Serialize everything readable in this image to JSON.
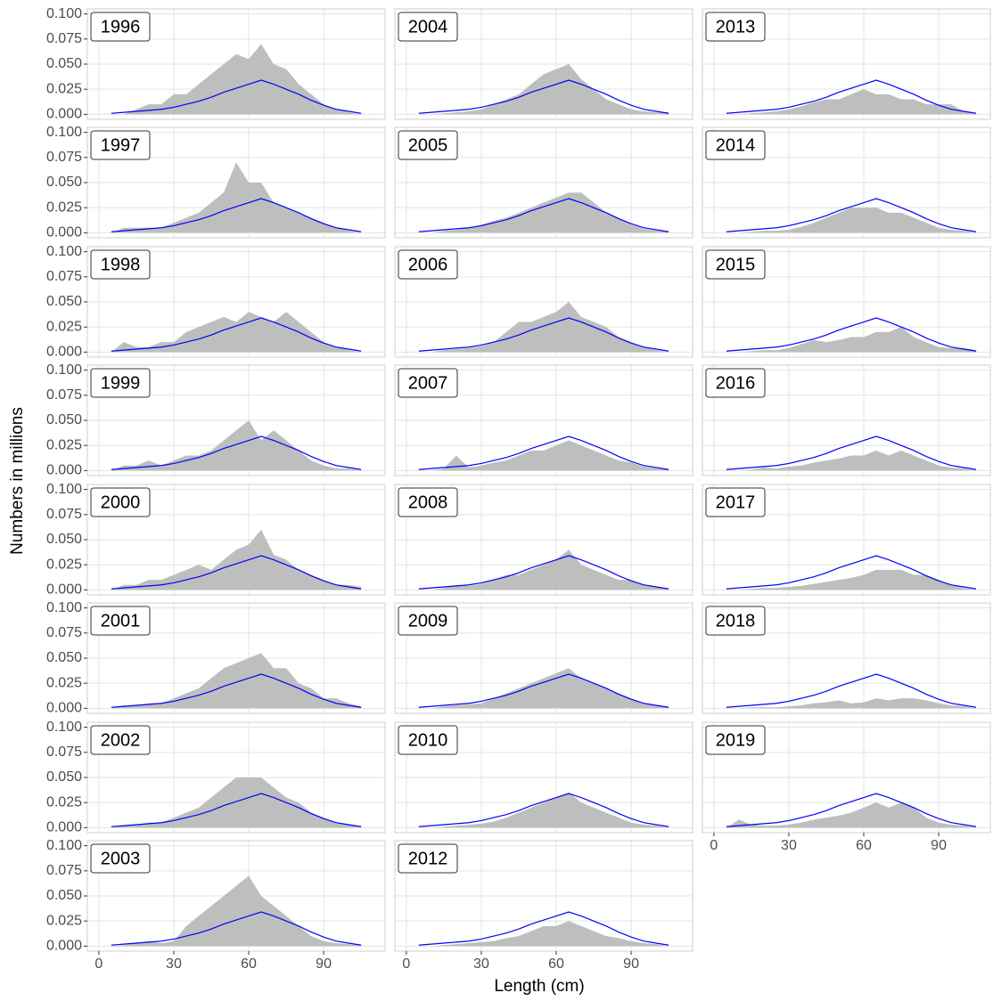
{
  "chart_data": {
    "type": "area-facets",
    "x_label": "Length (cm)",
    "y_label": "Numbers in millions",
    "x": [
      5,
      10,
      15,
      20,
      25,
      30,
      35,
      40,
      45,
      50,
      55,
      60,
      65,
      70,
      75,
      80,
      85,
      90,
      95,
      100,
      105
    ],
    "xlim": [
      -4.6,
      114.6
    ],
    "xticks": [
      0,
      30,
      60,
      90
    ],
    "ylim": [
      -0.005,
      0.105
    ],
    "yticks": [
      {
        "value": 0,
        "label": "0.000"
      },
      0.025,
      {
        "value": 0.05,
        "label": "0.050"
      },
      0.075,
      {
        "value": 0.1,
        "label": "0.100"
      }
    ],
    "grid": true,
    "area_color": "#bebebe",
    "line": {
      "color": "#0000ff",
      "values": [
        0.001,
        0.002,
        0.003,
        0.004,
        0.005,
        0.007,
        0.01,
        0.013,
        0.017,
        0.022,
        0.026,
        0.03,
        0.034,
        0.03,
        0.025,
        0.02,
        0.014,
        0.009,
        0.005,
        0.003,
        0.001
      ]
    },
    "panels": [
      {
        "title": "1996",
        "values": [
          0,
          0,
          0.005,
          0.01,
          0.01,
          0.02,
          0.02,
          0.03,
          0.04,
          0.05,
          0.06,
          0.055,
          0.07,
          0.05,
          0.045,
          0.03,
          0.02,
          0.01,
          0.005,
          0.002,
          0
        ]
      },
      {
        "title": "1997",
        "values": [
          0,
          0.005,
          0.005,
          0.005,
          0.005,
          0.01,
          0.015,
          0.02,
          0.03,
          0.04,
          0.07,
          0.05,
          0.05,
          0.03,
          0.025,
          0.02,
          0.015,
          0.01,
          0.005,
          0.002,
          0
        ]
      },
      {
        "title": "1998",
        "values": [
          0,
          0.01,
          0.005,
          0.005,
          0.01,
          0.01,
          0.02,
          0.025,
          0.03,
          0.035,
          0.03,
          0.04,
          0.035,
          0.03,
          0.04,
          0.03,
          0.02,
          0.01,
          0.005,
          0.002,
          0
        ]
      },
      {
        "title": "1999",
        "values": [
          0,
          0.005,
          0.005,
          0.01,
          0.005,
          0.01,
          0.015,
          0.015,
          0.02,
          0.03,
          0.04,
          0.05,
          0.03,
          0.04,
          0.03,
          0.02,
          0.01,
          0.005,
          0.002,
          0.002,
          0
        ]
      },
      {
        "title": "2000",
        "values": [
          0,
          0.005,
          0.005,
          0.01,
          0.01,
          0.015,
          0.02,
          0.025,
          0.02,
          0.03,
          0.04,
          0.045,
          0.06,
          0.035,
          0.03,
          0.02,
          0.015,
          0.01,
          0.005,
          0.005,
          0.003
        ]
      },
      {
        "title": "2001",
        "values": [
          0,
          0.003,
          0.003,
          0.005,
          0.005,
          0.01,
          0.015,
          0.02,
          0.03,
          0.04,
          0.045,
          0.05,
          0.055,
          0.04,
          0.04,
          0.025,
          0.02,
          0.01,
          0.01,
          0.005,
          0.002
        ]
      },
      {
        "title": "2002",
        "values": [
          0,
          0.002,
          0.003,
          0.005,
          0.005,
          0.01,
          0.015,
          0.02,
          0.03,
          0.04,
          0.05,
          0.05,
          0.05,
          0.04,
          0.03,
          0.025,
          0.015,
          0.01,
          0.005,
          0.003,
          0.001
        ]
      },
      {
        "title": "2003",
        "values": [
          0,
          0.001,
          0.003,
          0.005,
          0.003,
          0.005,
          0.02,
          0.03,
          0.04,
          0.05,
          0.06,
          0.07,
          0.05,
          0.04,
          0.03,
          0.02,
          0.01,
          0.005,
          0.003,
          0.002,
          0.001
        ]
      },
      {
        "title": "2004",
        "values": [
          0,
          0,
          0.001,
          0.002,
          0.003,
          0.005,
          0.01,
          0.015,
          0.02,
          0.03,
          0.04,
          0.045,
          0.05,
          0.035,
          0.025,
          0.015,
          0.01,
          0.005,
          0.003,
          0.002,
          0.002
        ]
      },
      {
        "title": "2005",
        "values": [
          0,
          0,
          0.002,
          0.003,
          0.005,
          0.008,
          0.012,
          0.015,
          0.02,
          0.025,
          0.03,
          0.035,
          0.04,
          0.04,
          0.03,
          0.02,
          0.015,
          0.008,
          0.004,
          0.002,
          0.001
        ]
      },
      {
        "title": "2006",
        "values": [
          0,
          0,
          0.002,
          0.003,
          0.004,
          0.006,
          0.01,
          0.02,
          0.03,
          0.03,
          0.035,
          0.04,
          0.05,
          0.035,
          0.03,
          0.025,
          0.015,
          0.01,
          0.005,
          0.002,
          0
        ]
      },
      {
        "title": "2007",
        "values": [
          0,
          0,
          0.002,
          0.015,
          0.003,
          0.005,
          0.008,
          0.01,
          0.015,
          0.02,
          0.02,
          0.025,
          0.03,
          0.025,
          0.02,
          0.015,
          0.01,
          0.008,
          0.004,
          0.002,
          0.001
        ]
      },
      {
        "title": "2008",
        "values": [
          0,
          0,
          0.002,
          0.005,
          0.004,
          0.006,
          0.01,
          0.015,
          0.015,
          0.02,
          0.025,
          0.03,
          0.04,
          0.025,
          0.02,
          0.015,
          0.01,
          0.01,
          0.005,
          0.003,
          0.001
        ]
      },
      {
        "title": "2009",
        "values": [
          0,
          0,
          0.002,
          0.003,
          0.004,
          0.005,
          0.01,
          0.015,
          0.02,
          0.025,
          0.03,
          0.035,
          0.04,
          0.03,
          0.025,
          0.02,
          0.015,
          0.01,
          0.005,
          0.003,
          0.001
        ]
      },
      {
        "title": "2010",
        "values": [
          0,
          0,
          0.001,
          0.002,
          0.003,
          0.004,
          0.006,
          0.01,
          0.015,
          0.02,
          0.025,
          0.03,
          0.035,
          0.025,
          0.02,
          0.015,
          0.01,
          0.005,
          0.003,
          0.002,
          0
        ]
      },
      {
        "title": "2012",
        "values": [
          0,
          0,
          0.001,
          0.002,
          0.003,
          0.004,
          0.005,
          0.008,
          0.01,
          0.015,
          0.02,
          0.02,
          0.025,
          0.02,
          0.015,
          0.01,
          0.008,
          0.005,
          0.003,
          0.002,
          0
        ]
      },
      {
        "title": "2013",
        "values": [
          0,
          0,
          0.001,
          0.002,
          0.003,
          0.005,
          0.008,
          0.012,
          0.015,
          0.015,
          0.02,
          0.025,
          0.02,
          0.02,
          0.015,
          0.015,
          0.01,
          0.01,
          0.01,
          0.003,
          0
        ]
      },
      {
        "title": "2014",
        "values": [
          0,
          0,
          0.001,
          0.002,
          0.002,
          0.003,
          0.006,
          0.01,
          0.015,
          0.02,
          0.025,
          0.025,
          0.025,
          0.02,
          0.02,
          0.015,
          0.01,
          0.005,
          0.003,
          0.002,
          0
        ]
      },
      {
        "title": "2015",
        "values": [
          0,
          0,
          0.001,
          0.002,
          0.002,
          0.004,
          0.008,
          0.012,
          0.01,
          0.012,
          0.015,
          0.015,
          0.02,
          0.02,
          0.025,
          0.015,
          0.01,
          0.005,
          0.004,
          0.004,
          0.002
        ]
      },
      {
        "title": "2016",
        "values": [
          0,
          0,
          0.001,
          0.003,
          0.002,
          0.004,
          0.005,
          0.008,
          0.01,
          0.012,
          0.015,
          0.015,
          0.02,
          0.015,
          0.02,
          0.015,
          0.01,
          0.005,
          0.003,
          0.002,
          0
        ]
      },
      {
        "title": "2017",
        "values": [
          0,
          0,
          0.001,
          0.002,
          0.002,
          0.003,
          0.004,
          0.006,
          0.008,
          0.01,
          0.012,
          0.015,
          0.02,
          0.02,
          0.02,
          0.015,
          0.015,
          0.01,
          0.005,
          0.002,
          0
        ]
      },
      {
        "title": "2018",
        "values": [
          0,
          0,
          0.001,
          0.001,
          0.001,
          0.002,
          0.003,
          0.005,
          0.006,
          0.008,
          0.005,
          0.006,
          0.01,
          0.008,
          0.01,
          0.01,
          0.008,
          0.005,
          0.003,
          0.002,
          0
        ]
      },
      {
        "title": "2019",
        "values": [
          0,
          0.008,
          0.003,
          0.002,
          0.002,
          0.003,
          0.005,
          0.008,
          0.01,
          0.012,
          0.015,
          0.02,
          0.025,
          0.02,
          0.025,
          0.02,
          0.01,
          0.005,
          0.003,
          0.002,
          0
        ]
      }
    ]
  }
}
